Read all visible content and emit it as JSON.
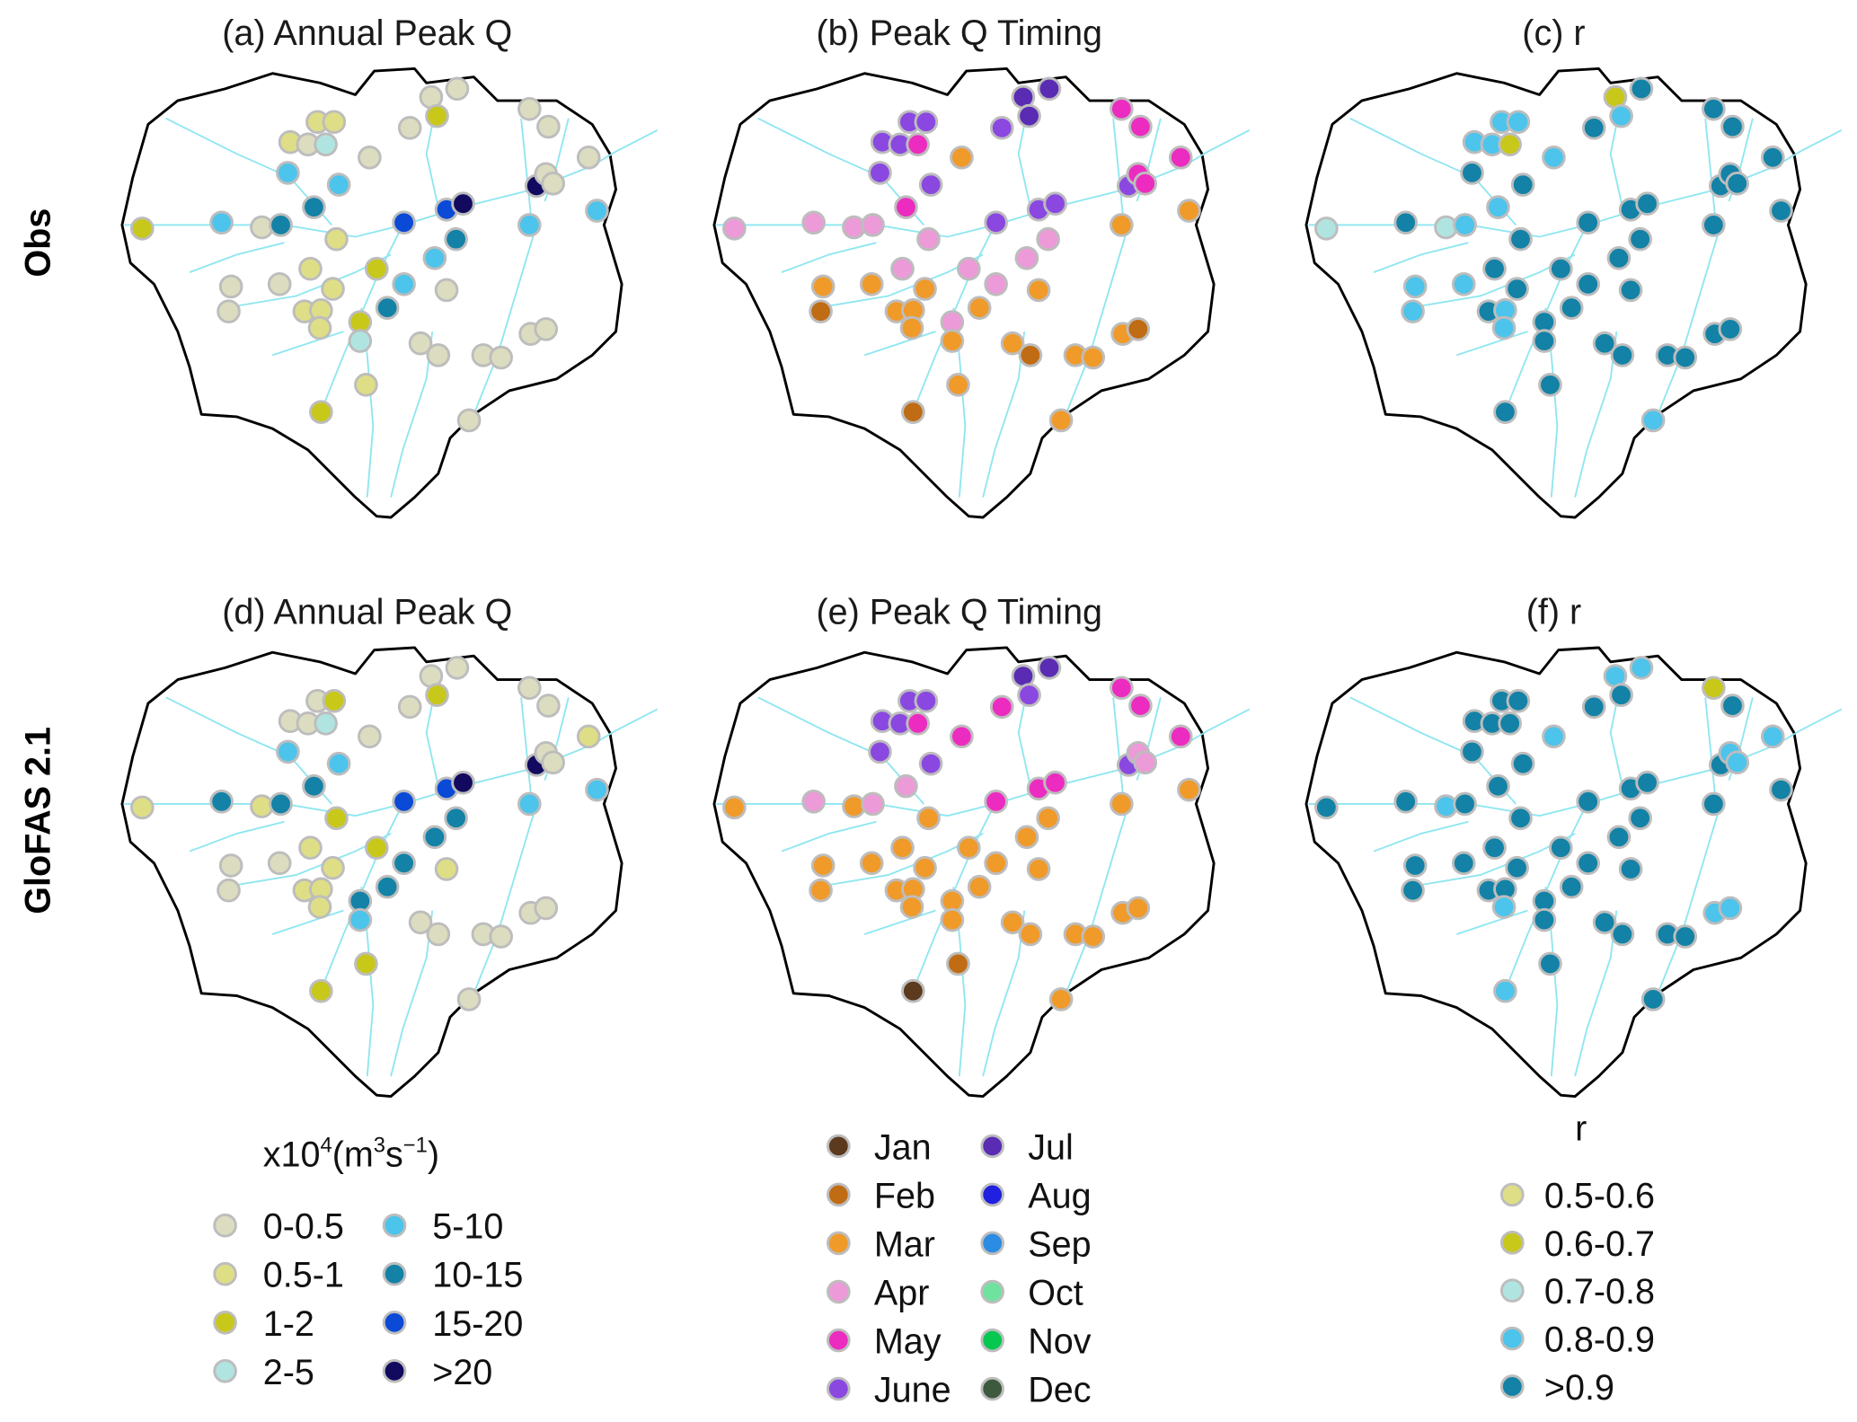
{
  "row_labels": [
    "Obs",
    "GloFAS 2.1"
  ],
  "panel_titles": [
    "(a) Annual Peak Q",
    "(b) Peak Q Timing",
    "(c) r",
    "(d) Annual Peak Q",
    "(e) Peak Q Timing",
    "(f) r"
  ],
  "legends": {
    "peak": {
      "unit": {
        "a": "x10",
        "e1": "4",
        "b": "(m",
        "e2": "3",
        "c": "s",
        "e3": "−1",
        "d": ")"
      },
      "items": [
        {
          "label": "0-0.5",
          "color": "#dcdcc0"
        },
        {
          "label": "0.5-1",
          "color": "#dede86"
        },
        {
          "label": "1-2",
          "color": "#c8c81a"
        },
        {
          "label": "2-5",
          "color": "#b0e4e0"
        },
        {
          "label": "5-10",
          "color": "#4cc4ec"
        },
        {
          "label": "10-15",
          "color": "#1382a6"
        },
        {
          "label": "15-20",
          "color": "#0a4ad6"
        },
        {
          "label": ">20",
          "color": "#120a5e"
        }
      ]
    },
    "timing": {
      "items": [
        {
          "label": "Jan",
          "color": "#5c3a1e"
        },
        {
          "label": "Feb",
          "color": "#c06c14"
        },
        {
          "label": "Mar",
          "color": "#f09a2a"
        },
        {
          "label": "Apr",
          "color": "#ec9ad8"
        },
        {
          "label": "May",
          "color": "#ec2cc0"
        },
        {
          "label": "June",
          "color": "#8a48e0"
        },
        {
          "label": "Jul",
          "color": "#5a2cb4"
        },
        {
          "label": "Aug",
          "color": "#2020e0"
        },
        {
          "label": "Sep",
          "color": "#2c8ce4"
        },
        {
          "label": "Oct",
          "color": "#70e2a0"
        },
        {
          "label": "Nov",
          "color": "#06c850"
        },
        {
          "label": "Dec",
          "color": "#3e5a3e"
        }
      ]
    },
    "r": {
      "title": "r",
      "items": [
        {
          "label": "0.5-0.6",
          "color": "#dede86"
        },
        {
          "label": "0.6-0.7",
          "color": "#c8c81a"
        },
        {
          "label": "0.7-0.8",
          "color": "#b0e4e0"
        },
        {
          "label": "0.8-0.9",
          "color": "#4cc4ec"
        },
        {
          "label": ">0.9",
          "color": "#1382a6"
        }
      ]
    }
  },
  "panels": [
    {
      "legend": "peak",
      "stations": [
        "1-2",
        "5-10",
        "0-0.5",
        "10-15",
        "0.5-1",
        "0-0.5",
        "0.5-1",
        "0.5-1",
        "2-5",
        "5-10",
        "5-10",
        "10-15",
        "0-0.5",
        "0.5-1",
        "0-0.5",
        "0-0.5",
        "0.5-1",
        "0.5-1",
        "0-0.5",
        "0.5-1",
        "0.5-1",
        "0.5-1",
        "1-2",
        "2-5",
        "1-2",
        "10-15",
        "5-10",
        "15-20",
        "5-10",
        "15-20",
        ">20",
        "10-15",
        "0-0.5",
        "0-0.5",
        "0-0.5",
        "0-0.5",
        "1-2",
        "0-0.5",
        "0-0.5",
        ">20",
        "0-0.5",
        "0-0.5",
        "0-0.5",
        "5-10",
        "5-10",
        "0-0.5",
        "0-0.5",
        "0-0.5",
        "0-0.5",
        "0-0.5",
        "0-0.5",
        "0.5-1",
        "1-2",
        "0-0.5"
      ]
    },
    {
      "legend": "timing",
      "stations": [
        "Apr",
        "Apr",
        "Apr",
        "Apr",
        "June",
        "June",
        "June",
        "June",
        "May",
        "June",
        "June",
        "May",
        "Mar",
        "Apr",
        "Mar",
        "Mar",
        "Apr",
        "Mar",
        "Feb",
        "Mar",
        "Mar",
        "Mar",
        "Apr",
        "Mar",
        "Apr",
        "Mar",
        "Apr",
        "June",
        "Apr",
        "June",
        "June",
        "Apr",
        "Mar",
        "June",
        "Jul",
        "Jul",
        "Jul",
        "May",
        "May",
        "June",
        "May",
        "May",
        "May",
        "Mar",
        "Mar",
        "Mar",
        "Feb",
        "Mar",
        "Mar",
        "Mar",
        "Feb",
        "Mar",
        "Feb",
        "Mar"
      ]
    },
    {
      "legend": "r",
      "stations": [
        "0.7-0.8",
        ">0.9",
        "0.7-0.8",
        "0.8-0.9",
        "0.8-0.9",
        "0.8-0.9",
        "0.8-0.9",
        "0.8-0.9",
        "0.6-0.7",
        ">0.9",
        ">0.9",
        "0.8-0.9",
        "0.8-0.9",
        ">0.9",
        "0.8-0.9",
        "0.8-0.9",
        ">0.9",
        ">0.9",
        "0.8-0.9",
        ">0.9",
        "0.8-0.9",
        "0.8-0.9",
        ">0.9",
        ">0.9",
        ">0.9",
        ">0.9",
        ">0.9",
        ">0.9",
        ">0.9",
        ">0.9",
        ">0.9",
        ">0.9",
        ">0.9",
        ">0.9",
        "0.6-0.7",
        ">0.9",
        "0.8-0.9",
        ">0.9",
        ">0.9",
        ">0.9",
        ">0.9",
        ">0.9",
        ">0.9",
        ">0.9",
        ">0.9",
        ">0.9",
        ">0.9",
        ">0.9",
        ">0.9",
        ">0.9",
        ">0.9",
        ">0.9",
        ">0.9",
        "0.8-0.9"
      ]
    },
    {
      "legend": "peak",
      "stations": [
        "0.5-1",
        "10-15",
        "0.5-1",
        "10-15",
        "0-0.5",
        "0-0.5",
        "0-0.5",
        "1-2",
        "2-5",
        "5-10",
        "5-10",
        "10-15",
        "0-0.5",
        "1-2",
        "0-0.5",
        "0-0.5",
        "0.5-1",
        "0.5-1",
        "0-0.5",
        "0.5-1",
        "0.5-1",
        "0.5-1",
        "10-15",
        "5-10",
        "1-2",
        "10-15",
        "10-15",
        "15-20",
        "10-15",
        "15-20",
        ">20",
        "10-15",
        "0.5-1",
        "0-0.5",
        "0-0.5",
        "0-0.5",
        "1-2",
        "0-0.5",
        "0-0.5",
        ">20",
        "0-0.5",
        "0-0.5",
        "0.5-1",
        "5-10",
        "5-10",
        "0-0.5",
        "0-0.5",
        "0-0.5",
        "0-0.5",
        "0-0.5",
        "0-0.5",
        "1-2",
        "1-2",
        "0-0.5"
      ]
    },
    {
      "legend": "timing",
      "stations": [
        "Mar",
        "Apr",
        "Mar",
        "Apr",
        "June",
        "June",
        "June",
        "June",
        "May",
        "June",
        "June",
        "Apr",
        "May",
        "Mar",
        "Mar",
        "Mar",
        "Mar",
        "Mar",
        "Mar",
        "Mar",
        "Mar",
        "Mar",
        "Mar",
        "Mar",
        "Mar",
        "Mar",
        "Mar",
        "May",
        "Mar",
        "May",
        "May",
        "Mar",
        "Mar",
        "May",
        "Jul",
        "Jul",
        "June",
        "May",
        "May",
        "June",
        "Apr",
        "Apr",
        "May",
        "Mar",
        "Mar",
        "Mar",
        "Mar",
        "Mar",
        "Mar",
        "Mar",
        "Mar",
        "Feb",
        "Jan",
        "Mar"
      ]
    },
    {
      "legend": "r",
      "stations": [
        ">0.9",
        ">0.9",
        "0.8-0.9",
        ">0.9",
        ">0.9",
        ">0.9",
        ">0.9",
        ">0.9",
        ">0.9",
        ">0.9",
        ">0.9",
        ">0.9",
        "0.8-0.9",
        ">0.9",
        ">0.9",
        ">0.9",
        ">0.9",
        ">0.9",
        ">0.9",
        ">0.9",
        ">0.9",
        "0.8-0.9",
        ">0.9",
        ">0.9",
        ">0.9",
        ">0.9",
        ">0.9",
        ">0.9",
        ">0.9",
        ">0.9",
        ">0.9",
        ">0.9",
        ">0.9",
        ">0.9",
        "0.8-0.9",
        "0.8-0.9",
        ">0.9",
        "0.6-0.7",
        ">0.9",
        ">0.9",
        "0.8-0.9",
        "0.8-0.9",
        "0.8-0.9",
        ">0.9",
        ">0.9",
        ">0.9",
        ">0.9",
        ">0.9",
        ">0.9",
        "0.8-0.9",
        "0.8-0.9",
        ">0.9",
        "0.8-0.9",
        ">0.9"
      ]
    }
  ]
}
